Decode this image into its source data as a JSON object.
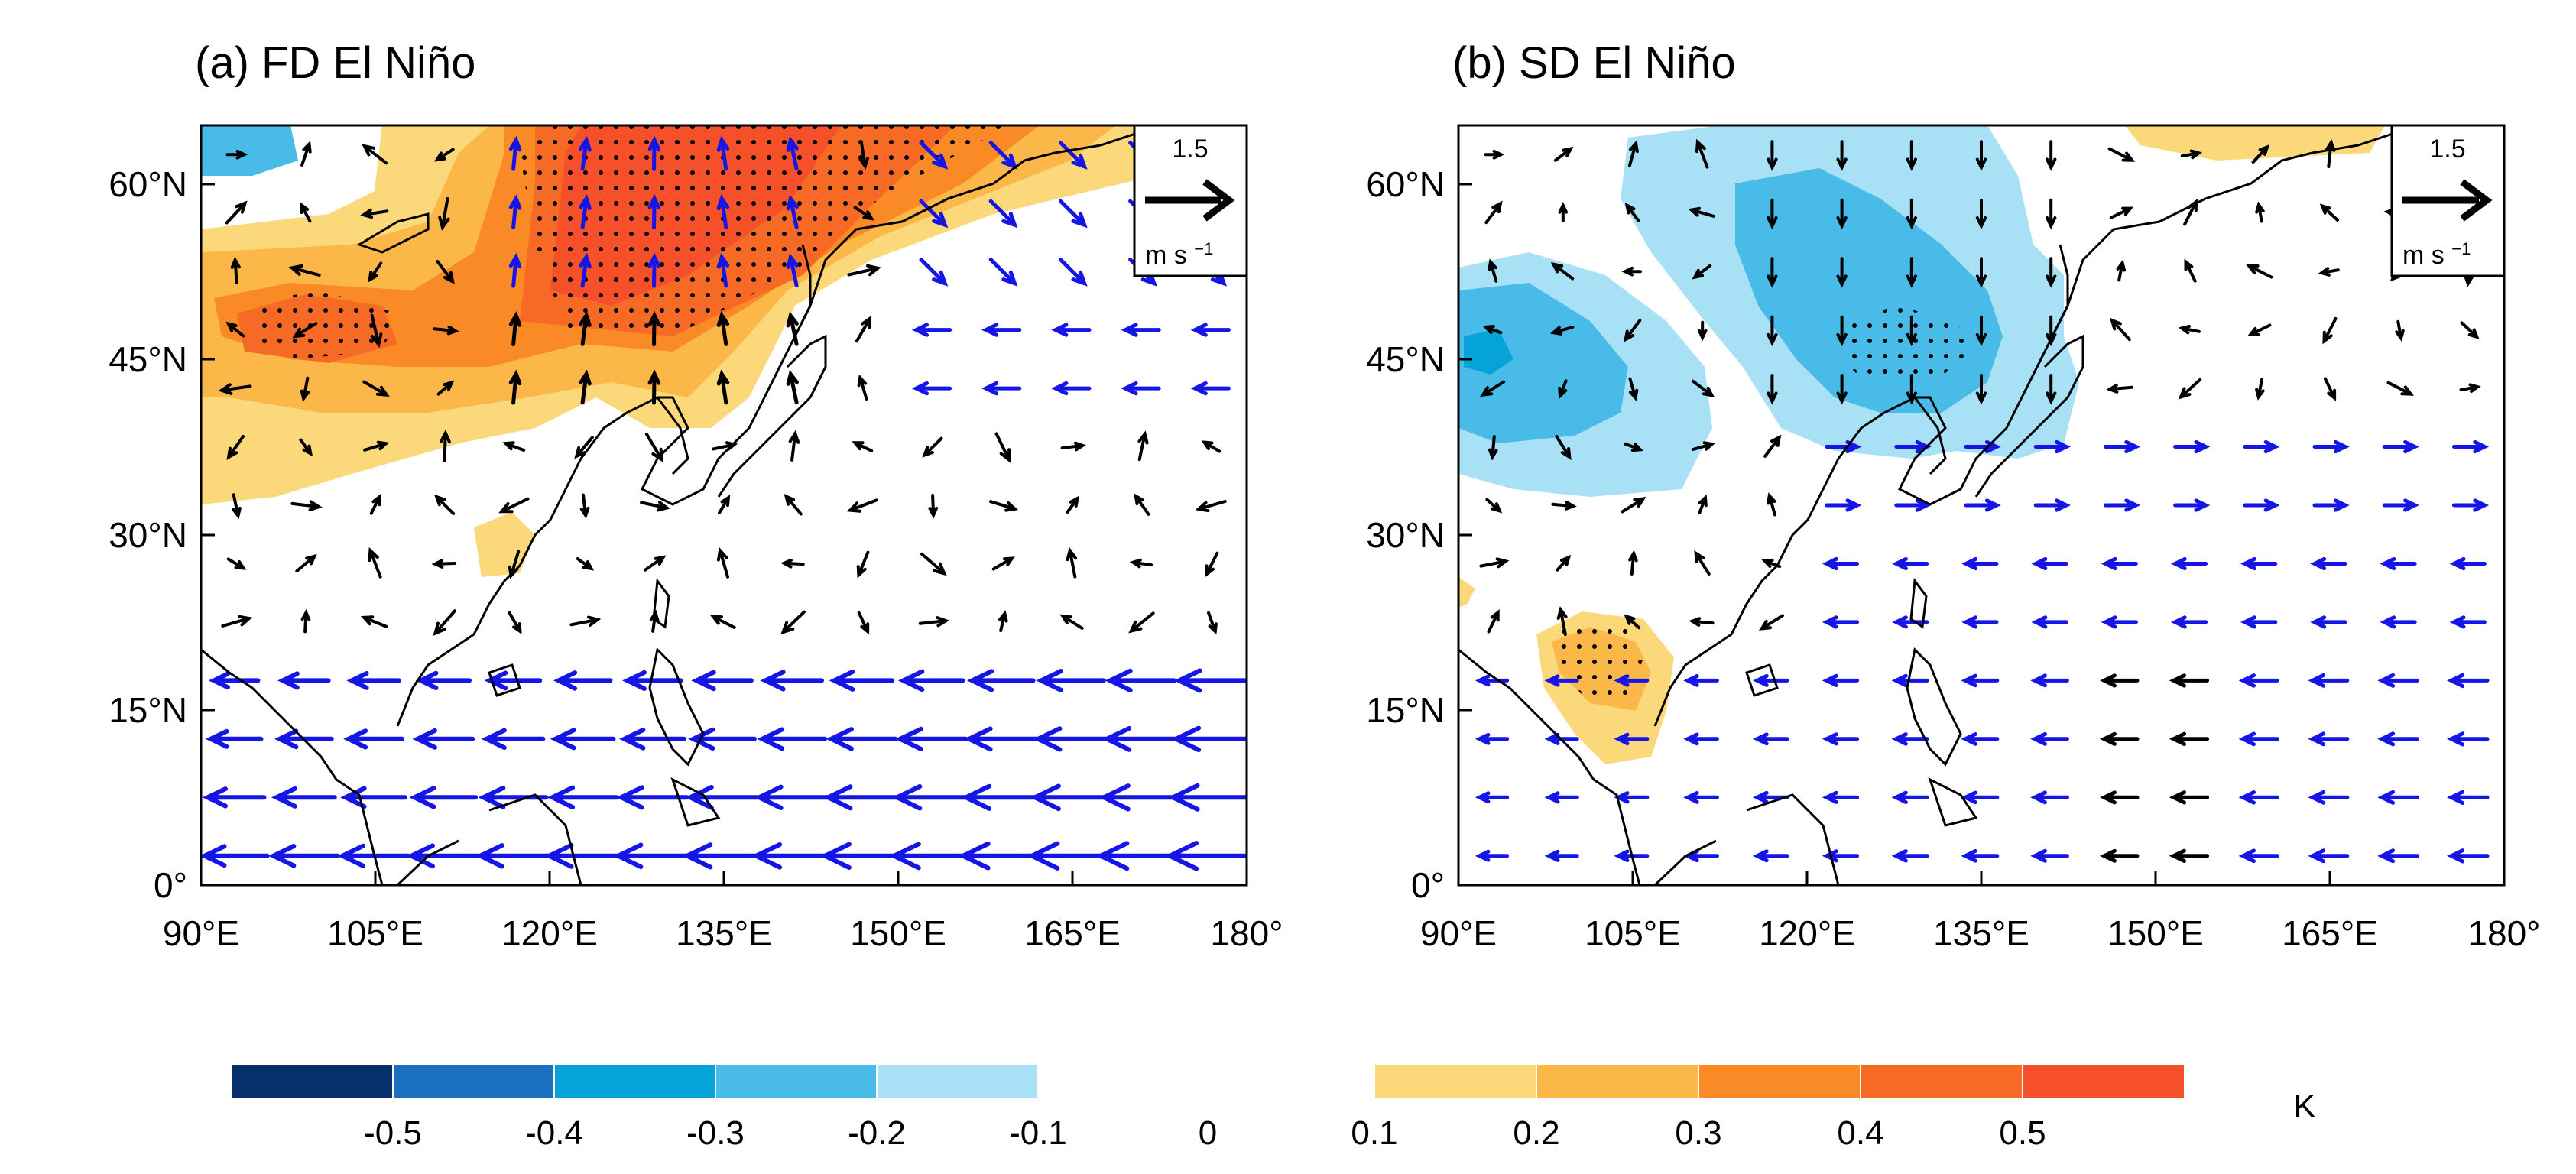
{
  "panels": [
    {
      "title": "(a) FD El Niño",
      "x_ticks": [
        "90°E",
        "105°E",
        "120°E",
        "135°E",
        "150°E",
        "165°E",
        "180°"
      ],
      "y_ticks": [
        "0°",
        "15°N",
        "30°N",
        "45°N",
        "60°N"
      ],
      "reference_vector": {
        "magnitude": "1.5",
        "unit": "m s",
        "unit_exp": "−1"
      }
    },
    {
      "title": "(b) SD El Niño",
      "x_ticks": [
        "90°E",
        "105°E",
        "120°E",
        "135°E",
        "150°E",
        "165°E",
        "180°"
      ],
      "y_ticks": [
        "0°",
        "15°N",
        "30°N",
        "45°N",
        "60°N"
      ],
      "reference_vector": {
        "magnitude": "1.5",
        "unit": "m s",
        "unit_exp": "−1"
      }
    }
  ],
  "map_extent": {
    "lon": [
      90,
      180
    ],
    "lat": [
      0,
      65
    ]
  },
  "colorbar": {
    "unit": "K",
    "zero_label": "0",
    "negative": [
      {
        "label": "-0.5",
        "color": "#08306b"
      },
      {
        "label": "-0.4",
        "color": "#1a6fc0"
      },
      {
        "label": "-0.3",
        "color": "#05a3d8"
      },
      {
        "label": "-0.2",
        "color": "#49bbe8"
      },
      {
        "label": "-0.1",
        "color": "#a8e1f6"
      }
    ],
    "positive": [
      {
        "label": "0.1",
        "color": "#fbd879"
      },
      {
        "label": "0.2",
        "color": "#fbb848"
      },
      {
        "label": "0.3",
        "color": "#f98a25"
      },
      {
        "label": "0.4",
        "color": "#f76a25"
      },
      {
        "label": "0.5",
        "color": "#f5502a"
      }
    ]
  },
  "vector_colors": {
    "significant": "#1515e6",
    "other": "#000000"
  }
}
